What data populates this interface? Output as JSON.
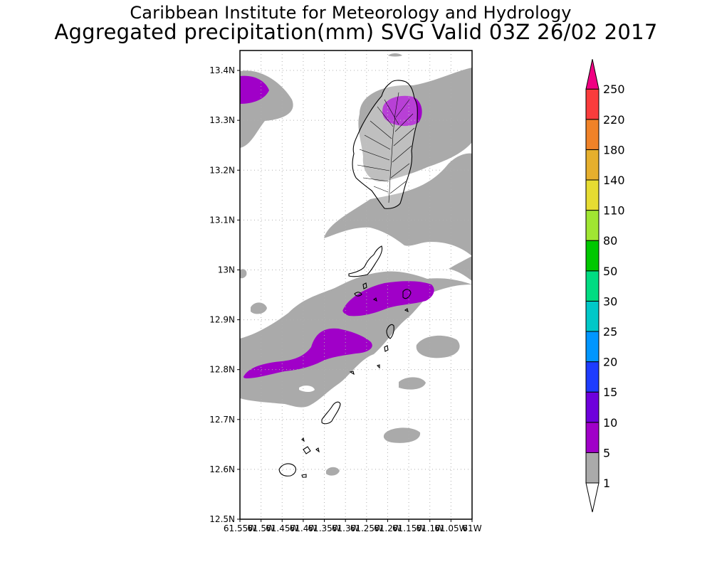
{
  "header": {
    "institute": "Caribbean Institute for Meteorology and Hydrology",
    "product": "Aggregated precipitation(mm) SVG Valid 03Z 26/02 2017"
  },
  "map": {
    "lat_ticks": [
      "13.4N",
      "13.3N",
      "13.2N",
      "13.1N",
      "13N",
      "12.9N",
      "12.8N",
      "12.7N",
      "12.6N",
      "12.5N"
    ],
    "lon_ticks": [
      "61.55W",
      "61.5W",
      "61.45W",
      "61.4W",
      "61.35W",
      "61.3W",
      "61.25W",
      "61.2W",
      "61.15W",
      "61.1W",
      "61.05W",
      "61W"
    ],
    "lat_range": [
      12.5,
      13.44
    ],
    "lon_range": [
      -61.55,
      -61.0
    ],
    "gridlines": true
  },
  "colorbar": {
    "levels": [
      "1",
      "5",
      "10",
      "15",
      "20",
      "25",
      "30",
      "50",
      "80",
      "110",
      "140",
      "180",
      "220",
      "250"
    ],
    "colors": [
      "#aaaaaa",
      "#a000c8",
      "#6e00dc",
      "#1e3cff",
      "#0096ff",
      "#00c8c8",
      "#00dc82",
      "#00c800",
      "#a0e632",
      "#e6dc32",
      "#e6af2d",
      "#f08228",
      "#fa3c3c",
      "#f00082"
    ],
    "below_color": "#ffffff"
  }
}
